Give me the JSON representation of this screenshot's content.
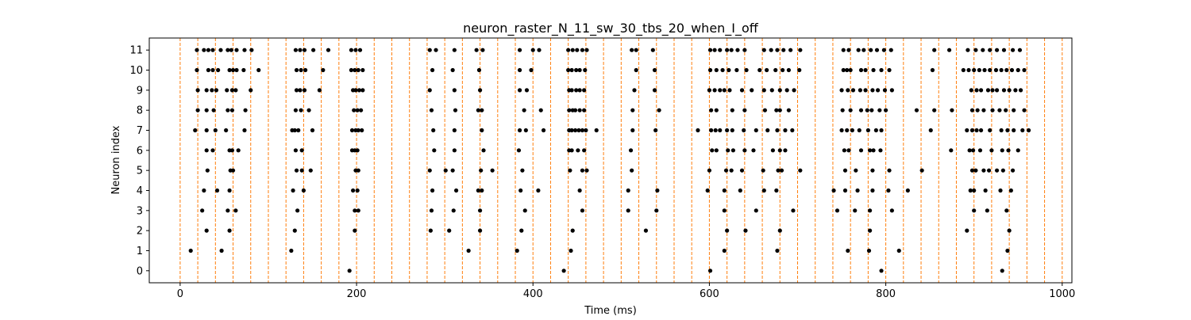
{
  "chart_data": {
    "type": "scatter",
    "title": "neuron_raster_N_11_sw_30_tbs_20_when_I_off",
    "xlabel": "Time (ms)",
    "ylabel": "Neuron index",
    "xlim": [
      -35,
      1011
    ],
    "ylim": [
      -0.6,
      11.6
    ],
    "x_ticks": [
      0,
      200,
      400,
      600,
      800,
      1000
    ],
    "y_ticks": [
      0,
      1,
      2,
      3,
      4,
      5,
      6,
      7,
      8,
      9,
      10,
      11
    ],
    "grid": false,
    "legend": "none",
    "colors": {
      "spikes": "#000000",
      "markers": "#ff7f0e"
    },
    "marker_lines": [
      0,
      20,
      40,
      60,
      80,
      100,
      120,
      140,
      160,
      180,
      200,
      220,
      240,
      260,
      280,
      300,
      320,
      340,
      360,
      380,
      400,
      420,
      440,
      460,
      480,
      500,
      520,
      540,
      560,
      580,
      600,
      620,
      640,
      660,
      680,
      700,
      720,
      740,
      760,
      780,
      800,
      820,
      840,
      860,
      880,
      900,
      920,
      940,
      960,
      980,
      1000
    ],
    "spikes": [
      {
        "neuron": 0,
        "times": [
          192,
          435,
          601,
          795,
          932
        ]
      },
      {
        "neuron": 1,
        "times": [
          12,
          47,
          126,
          327,
          382,
          443,
          617,
          677,
          757,
          781,
          815,
          938
        ]
      },
      {
        "neuron": 2,
        "times": [
          30,
          56,
          130,
          198,
          284,
          305,
          340,
          387,
          445,
          528,
          620,
          641,
          680,
          782,
          892,
          940
        ]
      },
      {
        "neuron": 3,
        "times": [
          25,
          54,
          63,
          133,
          198,
          202,
          285,
          310,
          340,
          391,
          456,
          508,
          540,
          617,
          653,
          695,
          745,
          765,
          782,
          807,
          900,
          915,
          937
        ]
      },
      {
        "neuron": 4,
        "times": [
          27,
          42,
          56,
          128,
          140,
          196,
          201,
          286,
          313,
          338,
          342,
          386,
          406,
          453,
          508,
          541,
          598,
          617,
          635,
          662,
          676,
          741,
          754,
          768,
          785,
          803,
          825,
          896,
          900,
          913,
          930,
          942
        ]
      },
      {
        "neuron": 5,
        "times": [
          31,
          57,
          60,
          132,
          138,
          148,
          199,
          202,
          283,
          301,
          309,
          341,
          354,
          388,
          442,
          456,
          461,
          512,
          600,
          619,
          625,
          637,
          661,
          678,
          682,
          703,
          754,
          766,
          785,
          804,
          841,
          898,
          902,
          911,
          917,
          926,
          933,
          944
        ]
      },
      {
        "neuron": 6,
        "times": [
          30,
          37,
          56,
          59,
          66,
          131,
          138,
          195,
          198,
          201,
          288,
          311,
          344,
          384,
          441,
          444,
          451,
          458,
          511,
          603,
          608,
          621,
          627,
          640,
          650,
          672,
          680,
          686,
          753,
          758,
          772,
          782,
          786,
          794,
          874,
          895,
          899,
          907,
          920,
          932,
          939,
          950
        ]
      },
      {
        "neuron": 7,
        "times": [
          17,
          30,
          40,
          52,
          73,
          127,
          130,
          134,
          150,
          195,
          199,
          202,
          206,
          287,
          311,
          342,
          385,
          392,
          412,
          441,
          444,
          448,
          452,
          456,
          460,
          472,
          513,
          539,
          587,
          602,
          607,
          612,
          620,
          626,
          639,
          653,
          666,
          677,
          686,
          694,
          750,
          756,
          762,
          770,
          780,
          789,
          795,
          851,
          892,
          898,
          903,
          908,
          918,
          931,
          938,
          945,
          955,
          962
        ]
      },
      {
        "neuron": 8,
        "times": [
          20,
          30,
          38,
          54,
          59,
          74,
          131,
          137,
          146,
          197,
          201,
          205,
          285,
          312,
          338,
          342,
          390,
          409,
          441,
          445,
          448,
          453,
          458,
          513,
          543,
          602,
          608,
          626,
          640,
          663,
          676,
          680,
          690,
          751,
          760,
          772,
          779,
          784,
          793,
          800,
          835,
          855,
          875,
          898,
          904,
          911,
          921,
          929,
          936,
          945,
          957
        ]
      },
      {
        "neuron": 9,
        "times": [
          20,
          30,
          36,
          41,
          53,
          59,
          63,
          80,
          132,
          136,
          141,
          158,
          196,
          199,
          203,
          207,
          283,
          311,
          340,
          385,
          393,
          441,
          444,
          449,
          453,
          458,
          515,
          538,
          600,
          606,
          612,
          617,
          623,
          637,
          648,
          662,
          671,
          680,
          688,
          696,
          750,
          757,
          763,
          771,
          777,
          785,
          791,
          799,
          807,
          897,
          903,
          908,
          916,
          921,
          926,
          934,
          940,
          947,
          953
        ]
      },
      {
        "neuron": 10,
        "times": [
          19,
          32,
          37,
          43,
          56,
          60,
          64,
          72,
          89,
          132,
          137,
          142,
          162,
          194,
          198,
          202,
          207,
          286,
          309,
          339,
          385,
          398,
          440,
          444,
          449,
          453,
          459,
          517,
          538,
          601,
          608,
          615,
          622,
          631,
          642,
          657,
          665,
          675,
          683,
          690,
          702,
          752,
          756,
          760,
          772,
          777,
          786,
          795,
          804,
          853,
          888,
          894,
          900,
          906,
          912,
          918,
          925,
          931,
          937,
          943,
          950,
          957
        ]
      },
      {
        "neuron": 11,
        "times": [
          19,
          27,
          32,
          37,
          46,
          54,
          58,
          64,
          73,
          81,
          131,
          136,
          141,
          151,
          168,
          194,
          199,
          204,
          283,
          290,
          311,
          336,
          343,
          385,
          400,
          407,
          440,
          445,
          450,
          456,
          461,
          512,
          517,
          536,
          601,
          606,
          612,
          620,
          625,
          632,
          640,
          662,
          670,
          677,
          684,
          692,
          703,
          752,
          758,
          769,
          775,
          783,
          790,
          798,
          806,
          855,
          872,
          893,
          902,
          910,
          918,
          926,
          934,
          944,
          952
        ]
      }
    ]
  }
}
